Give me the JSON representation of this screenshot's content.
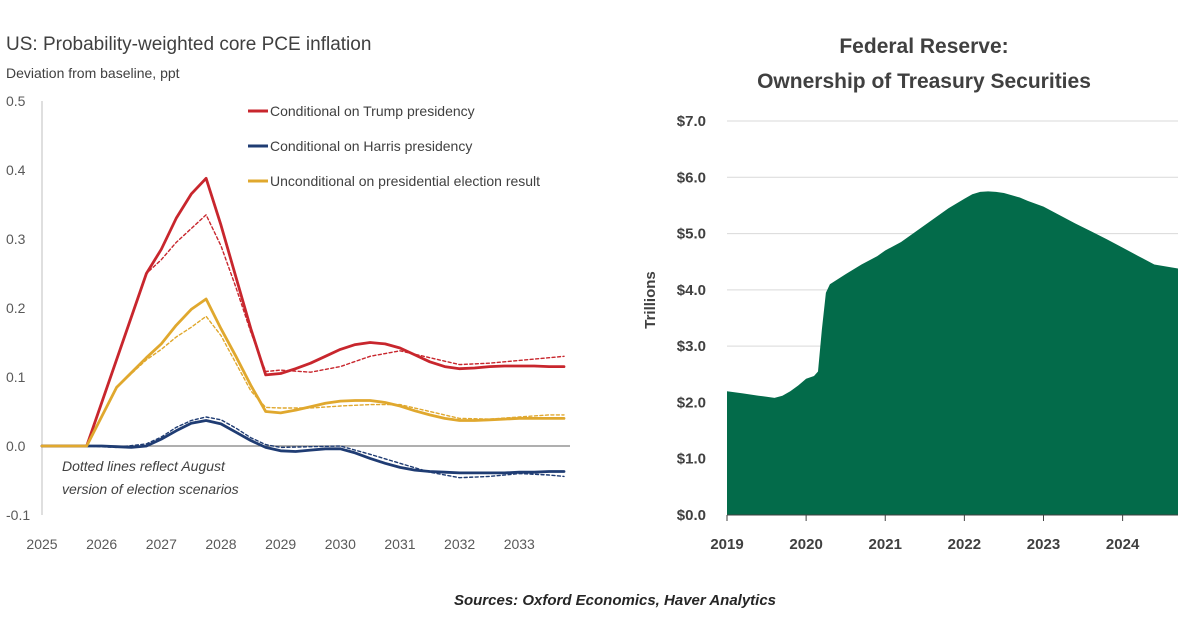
{
  "chart_data": [
    {
      "type": "line",
      "title": "US: Probability-weighted core PCE inflation",
      "subtitle": "Deviation from baseline, ppt",
      "xlim": [
        2025,
        2033.85
      ],
      "ylim": [
        -0.1,
        0.5
      ],
      "x_ticks": [
        "2025",
        "2026",
        "2027",
        "2028",
        "2029",
        "2030",
        "2031",
        "2032",
        "2033"
      ],
      "y_ticks": [
        "0.5",
        "0.4",
        "0.3",
        "0.2",
        "0.1",
        "0.0",
        "-0.1"
      ],
      "annotation_lines": [
        "Dotted lines reflect August",
        "version of election scenarios"
      ],
      "series": [
        {
          "name": "Conditional on Trump presidency",
          "color": "#c8262d",
          "style": "solid",
          "in_legend": true,
          "x": [
            2025,
            2025.75,
            2026.75,
            2027.0,
            2027.25,
            2027.5,
            2027.75,
            2028.0,
            2028.25,
            2028.5,
            2028.75,
            2029.0,
            2029.25,
            2029.5,
            2029.75,
            2030.0,
            2030.25,
            2030.5,
            2030.75,
            2031.0,
            2031.25,
            2031.5,
            2031.75,
            2032.0,
            2032.25,
            2032.5,
            2032.75,
            2033.0,
            2033.25,
            2033.5,
            2033.75
          ],
          "y": [
            0.0,
            0.0,
            0.25,
            0.285,
            0.33,
            0.365,
            0.388,
            0.32,
            0.245,
            0.17,
            0.103,
            0.105,
            0.112,
            0.12,
            0.13,
            0.14,
            0.147,
            0.15,
            0.148,
            0.142,
            0.132,
            0.122,
            0.115,
            0.112,
            0.113,
            0.115,
            0.116,
            0.116,
            0.116,
            0.115,
            0.115
          ]
        },
        {
          "name": "Trump presidency (August version)",
          "color": "#c8262d",
          "style": "dotted",
          "in_legend": false,
          "x": [
            2025,
            2025.75,
            2026.75,
            2027.0,
            2027.25,
            2027.5,
            2027.75,
            2028.0,
            2028.25,
            2028.5,
            2028.75,
            2029.0,
            2029.5,
            2030.0,
            2030.5,
            2031.0,
            2031.5,
            2032.0,
            2032.5,
            2033.0,
            2033.5,
            2033.75
          ],
          "y": [
            0.0,
            0.0,
            0.25,
            0.27,
            0.295,
            0.315,
            0.335,
            0.29,
            0.23,
            0.165,
            0.108,
            0.11,
            0.107,
            0.115,
            0.13,
            0.138,
            0.128,
            0.118,
            0.12,
            0.124,
            0.128,
            0.13
          ]
        },
        {
          "name": "Conditional on Harris presidency",
          "color": "#1f3c73",
          "style": "solid",
          "in_legend": true,
          "x": [
            2025,
            2025.75,
            2026.0,
            2026.25,
            2026.5,
            2026.75,
            2027.0,
            2027.25,
            2027.5,
            2027.75,
            2028.0,
            2028.25,
            2028.5,
            2028.75,
            2029.0,
            2029.25,
            2029.5,
            2029.75,
            2030.0,
            2030.25,
            2030.5,
            2030.75,
            2031.0,
            2031.25,
            2031.5,
            2031.75,
            2032.0,
            2032.25,
            2032.5,
            2032.75,
            2033.0,
            2033.25,
            2033.5,
            2033.75
          ],
          "y": [
            0.0,
            0.0,
            0.0,
            -0.001,
            -0.002,
            0.0,
            0.01,
            0.022,
            0.033,
            0.037,
            0.032,
            0.02,
            0.008,
            -0.002,
            -0.007,
            -0.008,
            -0.006,
            -0.004,
            -0.004,
            -0.01,
            -0.018,
            -0.025,
            -0.031,
            -0.035,
            -0.037,
            -0.038,
            -0.039,
            -0.039,
            -0.039,
            -0.039,
            -0.038,
            -0.038,
            -0.037,
            -0.037
          ]
        },
        {
          "name": "Harris presidency (August version)",
          "color": "#1f3c73",
          "style": "dotted",
          "in_legend": false,
          "x": [
            2025,
            2025.75,
            2026.25,
            2026.75,
            2027.0,
            2027.25,
            2027.5,
            2027.75,
            2028.0,
            2028.25,
            2028.5,
            2028.75,
            2029.0,
            2029.5,
            2030.0,
            2030.5,
            2031.0,
            2031.5,
            2032.0,
            2032.5,
            2033.0,
            2033.5,
            2033.75
          ],
          "y": [
            0.0,
            0.0,
            -0.002,
            0.003,
            0.013,
            0.027,
            0.037,
            0.042,
            0.038,
            0.026,
            0.012,
            0.002,
            -0.002,
            -0.001,
            0.0,
            -0.012,
            -0.025,
            -0.038,
            -0.046,
            -0.044,
            -0.04,
            -0.042,
            -0.044
          ]
        },
        {
          "name": "Unconditional on presidential election result",
          "color": "#e0a82e",
          "style": "solid",
          "in_legend": true,
          "x": [
            2025,
            2025.75,
            2026.25,
            2026.75,
            2027.0,
            2027.25,
            2027.5,
            2027.75,
            2028.0,
            2028.25,
            2028.5,
            2028.75,
            2029.0,
            2029.25,
            2029.5,
            2029.75,
            2030.0,
            2030.25,
            2030.5,
            2030.75,
            2031.0,
            2031.25,
            2031.5,
            2031.75,
            2032.0,
            2032.25,
            2032.5,
            2032.75,
            2033.0,
            2033.25,
            2033.5,
            2033.75
          ],
          "y": [
            0.0,
            0.0,
            0.085,
            0.128,
            0.148,
            0.175,
            0.198,
            0.213,
            0.17,
            0.13,
            0.088,
            0.05,
            0.048,
            0.052,
            0.057,
            0.062,
            0.065,
            0.066,
            0.066,
            0.063,
            0.058,
            0.051,
            0.045,
            0.04,
            0.037,
            0.037,
            0.038,
            0.039,
            0.04,
            0.04,
            0.04,
            0.04
          ]
        },
        {
          "name": "Unconditional (August version)",
          "color": "#e0a82e",
          "style": "dotted",
          "in_legend": false,
          "x": [
            2025,
            2025.75,
            2026.25,
            2026.75,
            2027.0,
            2027.25,
            2027.5,
            2027.75,
            2028.0,
            2028.25,
            2028.5,
            2028.75,
            2029.0,
            2029.5,
            2030.0,
            2030.5,
            2031.0,
            2031.5,
            2032.0,
            2032.5,
            2033.0,
            2033.5,
            2033.75
          ],
          "y": [
            0.0,
            0.0,
            0.085,
            0.125,
            0.14,
            0.158,
            0.172,
            0.188,
            0.16,
            0.12,
            0.08,
            0.056,
            0.055,
            0.055,
            0.058,
            0.06,
            0.06,
            0.05,
            0.04,
            0.039,
            0.042,
            0.045,
            0.045
          ]
        }
      ]
    },
    {
      "type": "area",
      "title": "Federal Reserve:",
      "title_line2": "Ownership of Treasury  Securities",
      "xlabel": "",
      "ylabel": "Trillions",
      "fill_color": "#036b4a",
      "xlim": [
        2019,
        2024.7
      ],
      "ylim": [
        0,
        7
      ],
      "x_ticks": [
        "2019",
        "2020",
        "2021",
        "2022",
        "2023",
        "2024"
      ],
      "y_ticks": [
        "$7.0",
        "$6.0",
        "$5.0",
        "$4.0",
        "$3.0",
        "$2.0",
        "$1.0",
        "$0.0"
      ],
      "grid": true,
      "x": [
        2019.0,
        2019.2,
        2019.4,
        2019.5,
        2019.6,
        2019.7,
        2019.8,
        2019.9,
        2020.0,
        2020.1,
        2020.15,
        2020.2,
        2020.25,
        2020.3,
        2020.5,
        2020.7,
        2020.9,
        2021.0,
        2021.2,
        2021.4,
        2021.6,
        2021.8,
        2022.0,
        2022.1,
        2022.2,
        2022.3,
        2022.4,
        2022.5,
        2022.6,
        2022.7,
        2022.8,
        2022.9,
        2023.0,
        2023.2,
        2023.4,
        2023.6,
        2023.8,
        2024.0,
        2024.2,
        2024.4,
        2024.7
      ],
      "y": [
        2.2,
        2.16,
        2.12,
        2.1,
        2.08,
        2.12,
        2.2,
        2.3,
        2.42,
        2.47,
        2.55,
        3.3,
        3.95,
        4.1,
        4.28,
        4.45,
        4.6,
        4.7,
        4.85,
        5.05,
        5.25,
        5.45,
        5.62,
        5.7,
        5.74,
        5.75,
        5.74,
        5.72,
        5.68,
        5.64,
        5.58,
        5.53,
        5.48,
        5.33,
        5.18,
        5.04,
        4.9,
        4.75,
        4.6,
        4.45,
        4.38
      ]
    }
  ],
  "source_text": "Sources: Oxford Economics, Haver Analytics"
}
